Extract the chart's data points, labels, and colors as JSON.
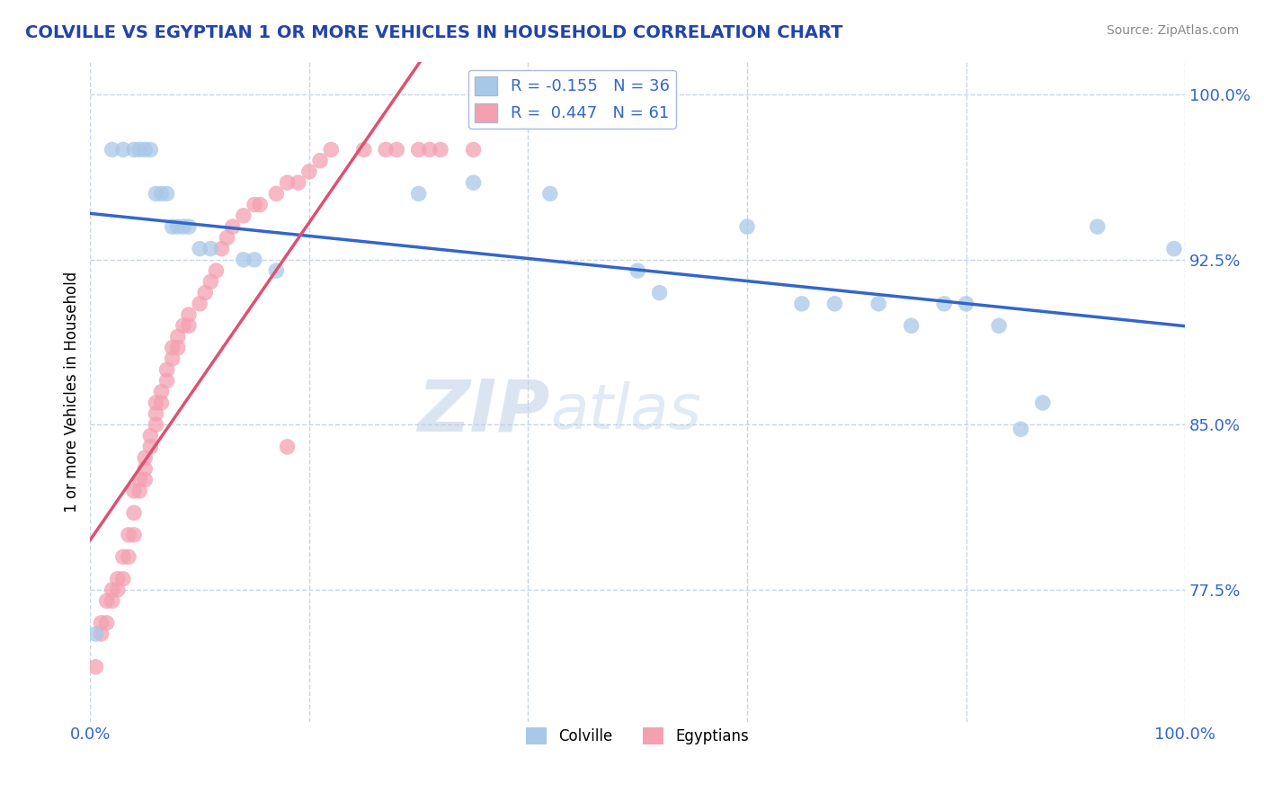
{
  "title": "COLVILLE VS EGYPTIAN 1 OR MORE VEHICLES IN HOUSEHOLD CORRELATION CHART",
  "source": "Source: ZipAtlas.com",
  "ylabel": "1 or more Vehicles in Household",
  "watermark_zip": "ZIP",
  "watermark_atlas": "atlas",
  "colville_color": "#a8c8e8",
  "egyptians_color": "#f4a0b0",
  "colville_line_color": "#3366cc",
  "egyptians_line_color": "#e05070",
  "colville_x": [
    0.005,
    0.02,
    0.03,
    0.04,
    0.045,
    0.05,
    0.055,
    0.06,
    0.065,
    0.07,
    0.075,
    0.08,
    0.085,
    0.09,
    0.1,
    0.11,
    0.14,
    0.15,
    0.17,
    0.3,
    0.35,
    0.42,
    0.5,
    0.52,
    0.6,
    0.65,
    0.68,
    0.72,
    0.75,
    0.78,
    0.8,
    0.83,
    0.85,
    0.87,
    0.92,
    0.99
  ],
  "colville_y": [
    0.755,
    0.975,
    0.975,
    0.975,
    0.975,
    0.975,
    0.975,
    0.955,
    0.955,
    0.955,
    0.94,
    0.94,
    0.94,
    0.94,
    0.93,
    0.93,
    0.925,
    0.925,
    0.92,
    0.955,
    0.96,
    0.955,
    0.92,
    0.91,
    0.94,
    0.905,
    0.905,
    0.905,
    0.895,
    0.905,
    0.905,
    0.895,
    0.848,
    0.86,
    0.94,
    0.93
  ],
  "egyptians_x": [
    0.005,
    0.01,
    0.01,
    0.015,
    0.015,
    0.02,
    0.02,
    0.025,
    0.025,
    0.03,
    0.03,
    0.035,
    0.035,
    0.04,
    0.04,
    0.04,
    0.045,
    0.045,
    0.05,
    0.05,
    0.05,
    0.055,
    0.055,
    0.06,
    0.06,
    0.06,
    0.065,
    0.065,
    0.07,
    0.07,
    0.075,
    0.075,
    0.08,
    0.08,
    0.085,
    0.09,
    0.09,
    0.1,
    0.105,
    0.11,
    0.115,
    0.12,
    0.125,
    0.13,
    0.14,
    0.15,
    0.155,
    0.17,
    0.18,
    0.19,
    0.2,
    0.21,
    0.22,
    0.25,
    0.27,
    0.28,
    0.3,
    0.31,
    0.32,
    0.35,
    0.18
  ],
  "egyptians_y": [
    0.74,
    0.755,
    0.76,
    0.76,
    0.77,
    0.77,
    0.775,
    0.775,
    0.78,
    0.78,
    0.79,
    0.79,
    0.8,
    0.8,
    0.81,
    0.82,
    0.82,
    0.825,
    0.825,
    0.83,
    0.835,
    0.84,
    0.845,
    0.85,
    0.855,
    0.86,
    0.86,
    0.865,
    0.87,
    0.875,
    0.88,
    0.885,
    0.885,
    0.89,
    0.895,
    0.895,
    0.9,
    0.905,
    0.91,
    0.915,
    0.92,
    0.93,
    0.935,
    0.94,
    0.945,
    0.95,
    0.95,
    0.955,
    0.96,
    0.96,
    0.965,
    0.97,
    0.975,
    0.975,
    0.975,
    0.975,
    0.975,
    0.975,
    0.975,
    0.975,
    0.84
  ],
  "xlim": [
    0.0,
    1.0
  ],
  "ylim": [
    0.715,
    1.015
  ],
  "yticks": [
    1.0,
    0.925,
    0.85,
    0.775
  ],
  "ytick_labels": [
    "100.0%",
    "92.5%",
    "85.0%",
    "77.5%"
  ],
  "xtick_left_label": "0.0%",
  "xtick_right_label": "100.0%",
  "background_color": "#ffffff",
  "grid_color": "#c8d4e4",
  "title_color": "#2244aa",
  "source_color": "#888888",
  "tick_color": "#3366cc",
  "legend1_label1": "R = -0.155   N = 36",
  "legend1_label2": "R =  0.447   N = 61",
  "legend2_label1": "Colville",
  "legend2_label2": "Egyptians"
}
